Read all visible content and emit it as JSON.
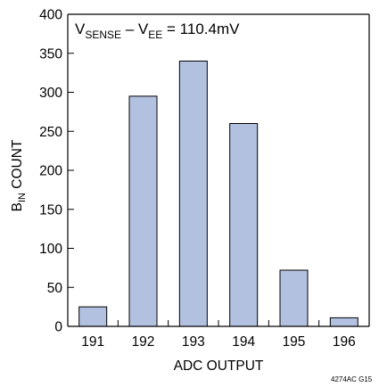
{
  "chart_data": {
    "type": "bar",
    "categories": [
      "191",
      "192",
      "193",
      "194",
      "195",
      "196"
    ],
    "values": [
      25,
      295,
      340,
      260,
      72,
      11
    ],
    "xlabel": "ADC OUTPUT",
    "ylabel": {
      "main": "B",
      "sub": "IN",
      "rest": "COUNT"
    },
    "ylim": [
      0,
      400
    ],
    "yticks": [
      0,
      50,
      100,
      150,
      200,
      250,
      300,
      350,
      400
    ],
    "grid": false,
    "annotation": {
      "parts": [
        {
          "text": "V",
          "sub": false
        },
        {
          "text": "SENSE",
          "sub": true
        },
        {
          "text": " – V",
          "sub": false
        },
        {
          "text": "EE",
          "sub": true
        },
        {
          "text": " = 110.4mV",
          "sub": false
        }
      ]
    },
    "bar_color": "#b3c1e1",
    "bar_outline": "#000000",
    "figure_label": "4274AC G15"
  }
}
